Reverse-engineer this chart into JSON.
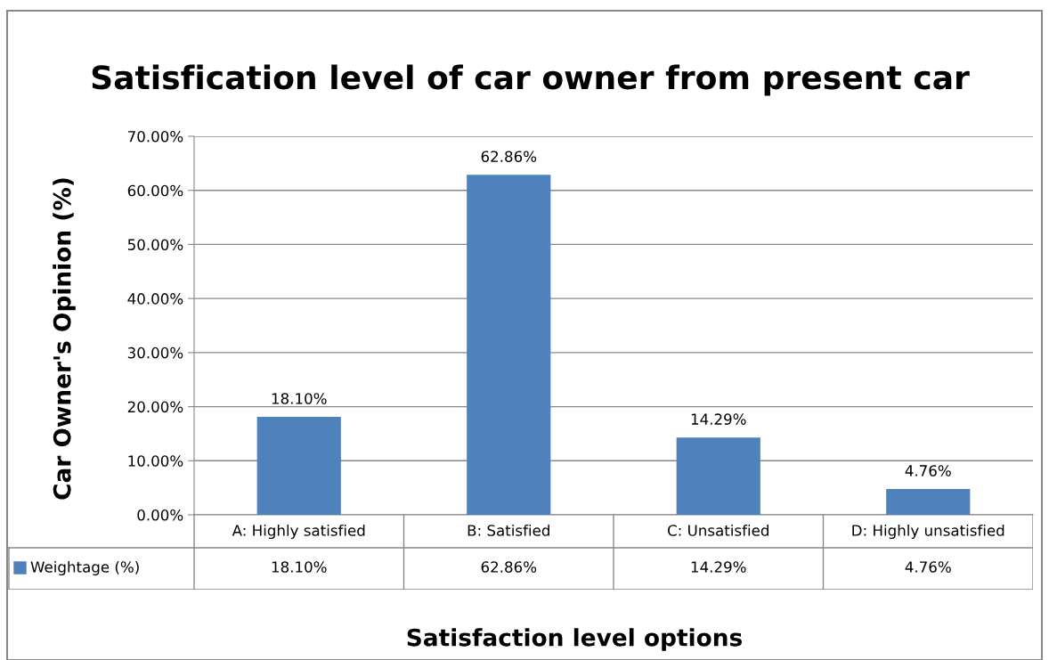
{
  "chart_data": {
    "type": "bar",
    "title": "Satisfication level of car owner from present car",
    "xlabel": "Satisfaction level options",
    "ylabel": "Car Owner's Opinion (%)",
    "categories": [
      "A: Highly satisfied",
      "B: Satisfied",
      "C: Unsatisfied",
      "D: Highly unsatisfied"
    ],
    "series": [
      {
        "name": "Weightage (%)",
        "color": "#4f81bd",
        "values": [
          18.1,
          62.86,
          14.29,
          4.76
        ],
        "value_labels": [
          "18.10%",
          "62.86%",
          "14.29%",
          "4.76%"
        ]
      }
    ],
    "ylim": [
      0,
      70
    ],
    "yticks": [
      {
        "value": 0,
        "label": "0.00%"
      },
      {
        "value": 10,
        "label": "10.00%"
      },
      {
        "value": 20,
        "label": "20.00%"
      },
      {
        "value": 30,
        "label": "30.00%"
      },
      {
        "value": 40,
        "label": "40.00%"
      },
      {
        "value": 50,
        "label": "50.00%"
      },
      {
        "value": 60,
        "label": "60.00%"
      },
      {
        "value": 70,
        "label": "70.00%"
      }
    ],
    "grid": "y",
    "legend": "bottom"
  }
}
